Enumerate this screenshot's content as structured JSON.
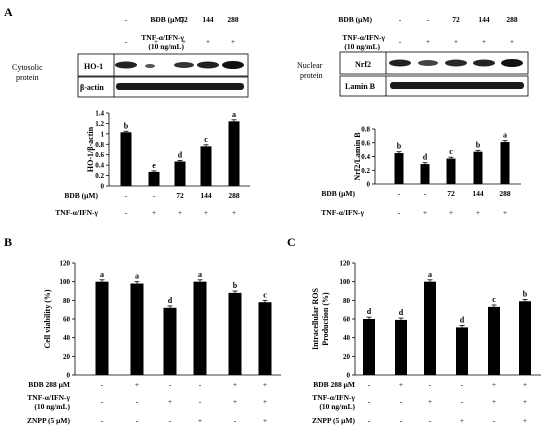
{
  "figure": {
    "panels": {
      "A": {
        "letter": "A"
      },
      "B": {
        "letter": "B"
      },
      "C": {
        "letter": "C"
      }
    },
    "blot_left": {
      "cond_labels": [
        "BDB (μM)",
        "TNF-α/IFN-γ",
        "(10 ng/mL)"
      ],
      "bdb": [
        "-",
        "-",
        "72",
        "144",
        "288"
      ],
      "tnf": [
        "-",
        "+",
        "+",
        "+",
        "+"
      ],
      "side_label": [
        "Cytosolic",
        "protein"
      ],
      "bands": [
        "HO-1",
        "β-actin"
      ]
    },
    "blot_right": {
      "cond_labels": [
        "BDB (μM)",
        "TNF-α/IFN-γ",
        "(10 ng/mL)"
      ],
      "bdb": [
        "-",
        "-",
        "72",
        "144",
        "288"
      ],
      "tnf": [
        "-",
        "+",
        "+",
        "+",
        "+"
      ],
      "side_label": [
        "Nuclear",
        "protein"
      ],
      "bands": [
        "Nrf2",
        "Lamin B"
      ]
    },
    "footer_a": {
      "row1_label": "BDB (μM)",
      "row2_label": "TNF-α/IFN-γ"
    },
    "footer_bc": {
      "row1_label": "BDB 288 μM",
      "row2_label": [
        "TNF-α/IFN-γ",
        "(10 ng/mL)"
      ],
      "row3_label": "ZNPP (5 μM)"
    }
  },
  "chart_data": [
    {
      "type": "bar",
      "panel": "A-left",
      "ylabel": "HO-1/β-actin",
      "ylim": [
        0,
        1.4
      ],
      "yticks": [
        "0",
        "0.2",
        "0.4",
        "0.6",
        "0.8",
        "1",
        "1.2",
        "1.4"
      ],
      "categories": [
        "1",
        "2",
        "3",
        "4",
        "5"
      ],
      "values": [
        1.03,
        0.27,
        0.47,
        0.76,
        1.24
      ],
      "errors": [
        0.02,
        0.02,
        0.02,
        0.03,
        0.03
      ],
      "sig_letters": [
        "b",
        "e",
        "d",
        "c",
        "a"
      ],
      "bdb": [
        "-",
        "-",
        "72",
        "144",
        "288"
      ],
      "tnf": [
        "-",
        "+",
        "+",
        "+",
        "+"
      ]
    },
    {
      "type": "bar",
      "panel": "A-right",
      "ylabel": "Nrf2/Lamin B",
      "ylim": [
        0,
        0.8
      ],
      "yticks": [
        "0",
        "0.2",
        "0.4",
        "0.6",
        "0.8"
      ],
      "categories": [
        "1",
        "2",
        "3",
        "4",
        "5"
      ],
      "values": [
        0.45,
        0.29,
        0.37,
        0.47,
        0.61
      ],
      "errors": [
        0.02,
        0.02,
        0.02,
        0.02,
        0.02
      ],
      "sig_letters": [
        "b",
        "d",
        "c",
        "b",
        "a"
      ],
      "bdb": [
        "-",
        "-",
        "72",
        "144",
        "288"
      ],
      "tnf": [
        "-",
        "+",
        "+",
        "+",
        "+"
      ]
    },
    {
      "type": "bar",
      "panel": "B",
      "ylabel": "Cell viability (%)",
      "ylim": [
        0,
        120
      ],
      "yticks": [
        "0",
        "20",
        "40",
        "60",
        "80",
        "100",
        "120"
      ],
      "categories": [
        "1",
        "2",
        "3",
        "4",
        "5",
        "6"
      ],
      "values": [
        100,
        98,
        72,
        100,
        88,
        78
      ],
      "errors": [
        2,
        2,
        2,
        2,
        2,
        2
      ],
      "sig_letters": [
        "a",
        "a",
        "d",
        "a",
        "b",
        "c"
      ],
      "bdb": [
        "-",
        "+",
        "-",
        "-",
        "+",
        "+"
      ],
      "tnf": [
        "-",
        "-",
        "+",
        "-",
        "+",
        "+"
      ],
      "znpp": [
        "-",
        "-",
        "-",
        "+",
        "-",
        "+"
      ]
    },
    {
      "type": "bar",
      "panel": "C",
      "ylabel": [
        "Intracellular ROS",
        "Production (%)"
      ],
      "ylim": [
        0,
        120
      ],
      "yticks": [
        "0",
        "20",
        "40",
        "60",
        "80",
        "100",
        "120"
      ],
      "categories": [
        "1",
        "2",
        "3",
        "4",
        "5",
        "6"
      ],
      "values": [
        60,
        59,
        100,
        51,
        73,
        79
      ],
      "errors": [
        2,
        2,
        2,
        2,
        2,
        2
      ],
      "sig_letters": [
        "d",
        "d",
        "a",
        "d",
        "c",
        "b"
      ],
      "bdb": [
        "-",
        "+",
        "-",
        "-",
        "+",
        "+"
      ],
      "tnf": [
        "-",
        "-",
        "+",
        "-",
        "+",
        "+"
      ],
      "znpp": [
        "-",
        "-",
        "-",
        "+",
        "-",
        "+"
      ]
    }
  ]
}
